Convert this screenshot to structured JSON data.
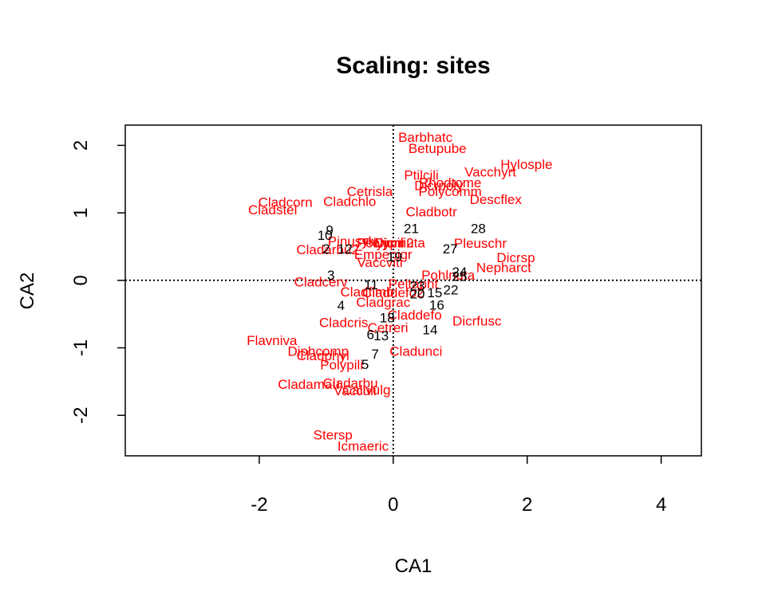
{
  "chart_data": {
    "type": "scatter",
    "title": "Scaling: sites",
    "xlabel": "CA1",
    "ylabel": "CA2",
    "xlim": [
      -4.0,
      4.6
    ],
    "ylim": [
      -2.6,
      2.3
    ],
    "x_ticks": [
      -2,
      0,
      2,
      4
    ],
    "y_ticks": [
      -2,
      -1,
      0,
      1,
      2
    ],
    "reference_lines": {
      "x": 0,
      "y": 0,
      "style": "dotted"
    },
    "species_color": "#ff0000",
    "site_color": "#000000",
    "sites": [
      {
        "label": "10",
        "x": -1.02,
        "y": 0.67
      },
      {
        "label": "9",
        "x": -0.95,
        "y": 0.75
      },
      {
        "label": "2",
        "x": -1.0,
        "y": 0.47
      },
      {
        "label": "12",
        "x": -0.72,
        "y": 0.47
      },
      {
        "label": "21",
        "x": 0.27,
        "y": 0.77
      },
      {
        "label": "28",
        "x": 1.27,
        "y": 0.77
      },
      {
        "label": "19",
        "x": 0.02,
        "y": 0.35
      },
      {
        "label": "27",
        "x": 0.85,
        "y": 0.47
      },
      {
        "label": "3",
        "x": -0.93,
        "y": 0.08
      },
      {
        "label": "24",
        "x": 0.99,
        "y": 0.13
      },
      {
        "label": "25",
        "x": 0.99,
        "y": 0.06
      },
      {
        "label": "11",
        "x": -0.33,
        "y": -0.06
      },
      {
        "label": "23",
        "x": 0.36,
        "y": -0.08
      },
      {
        "label": "20",
        "x": 0.36,
        "y": -0.2
      },
      {
        "label": "22",
        "x": 0.86,
        "y": -0.14
      },
      {
        "label": "15",
        "x": 0.62,
        "y": -0.18
      },
      {
        "label": "4",
        "x": -0.78,
        "y": -0.37
      },
      {
        "label": "16",
        "x": 0.65,
        "y": -0.36
      },
      {
        "label": "18",
        "x": -0.09,
        "y": -0.55
      },
      {
        "label": "14",
        "x": 0.55,
        "y": -0.73
      },
      {
        "label": "6",
        "x": -0.34,
        "y": -0.8
      },
      {
        "label": "13",
        "x": -0.18,
        "y": -0.82
      },
      {
        "label": "7",
        "x": -0.27,
        "y": -1.09
      },
      {
        "label": "5",
        "x": -0.42,
        "y": -1.24
      }
    ],
    "species": [
      {
        "label": "Barbhatc",
        "x": 0.48,
        "y": 2.12
      },
      {
        "label": "Betupube",
        "x": 0.66,
        "y": 1.96
      },
      {
        "label": "Hylosple",
        "x": 1.99,
        "y": 1.72
      },
      {
        "label": "Vacchyrt",
        "x": 1.45,
        "y": 1.61
      },
      {
        "label": "Ptilcili",
        "x": 0.42,
        "y": 1.56
      },
      {
        "label": "Rhodtome",
        "x": 0.85,
        "y": 1.45
      },
      {
        "label": "Dicrpoly",
        "x": 0.68,
        "y": 1.41
      },
      {
        "label": "Polycomm",
        "x": 0.85,
        "y": 1.32
      },
      {
        "label": "Cetrisla",
        "x": -0.35,
        "y": 1.32
      },
      {
        "label": "Descflex",
        "x": 1.53,
        "y": 1.2
      },
      {
        "label": "Cladchlo",
        "x": -0.65,
        "y": 1.17
      },
      {
        "label": "Cladcorn",
        "x": -1.61,
        "y": 1.16
      },
      {
        "label": "Cladstel",
        "x": -1.8,
        "y": 1.05
      },
      {
        "label": "Cladbotr",
        "x": 0.57,
        "y": 1.02
      },
      {
        "label": "Pleuschr",
        "x": 1.3,
        "y": 0.55
      },
      {
        "label": "Pinusylv",
        "x": -0.6,
        "y": 0.58
      },
      {
        "label": "Polyjuni",
        "x": -0.19,
        "y": 0.56
      },
      {
        "label": "Polypili2",
        "x": -0.07,
        "y": 0.56
      },
      {
        "label": "Dicrnuta",
        "x": 0.1,
        "y": 0.56
      },
      {
        "label": "Cladarbu2",
        "x": -0.98,
        "y": 0.46
      },
      {
        "label": "Empenigr",
        "x": -0.15,
        "y": 0.39
      },
      {
        "label": "Dicrsp",
        "x": 1.83,
        "y": 0.34
      },
      {
        "label": "Vaccviti",
        "x": -0.2,
        "y": 0.27
      },
      {
        "label": "Nepharct",
        "x": 1.65,
        "y": 0.19
      },
      {
        "label": "Pohlnuta",
        "x": 0.82,
        "y": 0.08
      },
      {
        "label": "Cladcerv",
        "x": -1.08,
        "y": -0.02
      },
      {
        "label": "Peltapht",
        "x": 0.3,
        "y": -0.05
      },
      {
        "label": "Cladfimb",
        "x": -0.39,
        "y": -0.17
      },
      {
        "label": "Claddefo2",
        "x": 0.0,
        "y": -0.18
      },
      {
        "label": "Cladgrac",
        "x": -0.15,
        "y": -0.32
      },
      {
        "label": "Claddefo",
        "x": 0.32,
        "y": -0.51
      },
      {
        "label": "Dicrfusc",
        "x": 1.25,
        "y": -0.6
      },
      {
        "label": "Cladcris",
        "x": -0.74,
        "y": -0.62
      },
      {
        "label": "Cetreri",
        "x": -0.08,
        "y": -0.7
      },
      {
        "label": "Flavniva",
        "x": -1.81,
        "y": -0.89
      },
      {
        "label": "Cladunci",
        "x": 0.34,
        "y": -1.05
      },
      {
        "label": "Diphcomp",
        "x": -1.12,
        "y": -1.05
      },
      {
        "label": "Cladphyl",
        "x": -1.05,
        "y": -1.11
      },
      {
        "label": "Polypili",
        "x": -0.77,
        "y": -1.25
      },
      {
        "label": "Cladamau",
        "x": -1.26,
        "y": -1.54
      },
      {
        "label": "Cladarbu",
        "x": -0.64,
        "y": -1.52
      },
      {
        "label": "Vacculi",
        "x": -0.57,
        "y": -1.63
      },
      {
        "label": "Callvulg",
        "x": -0.4,
        "y": -1.62
      },
      {
        "label": "Stersp",
        "x": -0.9,
        "y": -2.29
      },
      {
        "label": "Icmaeric",
        "x": -0.45,
        "y": -2.45
      }
    ]
  }
}
